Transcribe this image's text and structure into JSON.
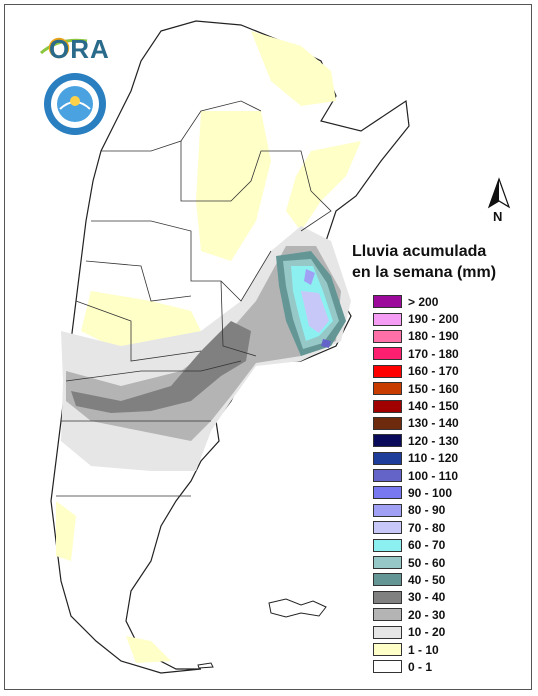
{
  "legend": {
    "title_line1": "Lluvia acumulada",
    "title_line2": "en la semana (mm)",
    "items": [
      {
        "label": "> 200",
        "color": "#9c0a9c"
      },
      {
        "label": "190 - 200",
        "color": "#f59cf5"
      },
      {
        "label": "180 - 190",
        "color": "#ff6fa8"
      },
      {
        "label": "170 - 180",
        "color": "#ff1f70"
      },
      {
        "label": "160 - 170",
        "color": "#ff0000"
      },
      {
        "label": "150 - 160",
        "color": "#c83c00"
      },
      {
        "label": "140 - 150",
        "color": "#a00000"
      },
      {
        "label": "130 - 140",
        "color": "#6e2a0c"
      },
      {
        "label": "120 - 130",
        "color": "#0a0a5a"
      },
      {
        "label": "110 - 120",
        "color": "#1e3c9a"
      },
      {
        "label": "100 - 110",
        "color": "#6464c8"
      },
      {
        "label": "90 - 100",
        "color": "#7878f0"
      },
      {
        "label": "80 - 90",
        "color": "#a0a0f5"
      },
      {
        "label": "70 - 80",
        "color": "#c8c8f8"
      },
      {
        "label": "60 - 70",
        "color": "#8cf0f0"
      },
      {
        "label": "50 - 60",
        "color": "#96c8c8"
      },
      {
        "label": "40 - 50",
        "color": "#649696"
      },
      {
        "label": "30 - 40",
        "color": "#808080"
      },
      {
        "label": "20 - 30",
        "color": "#b4b4b4"
      },
      {
        "label": "10 - 20",
        "color": "#e6e6e6"
      },
      {
        "label": "1 - 10",
        "color": "#ffffc8"
      },
      {
        "label": "0 - 1",
        "color": "#ffffff"
      }
    ]
  },
  "north_arrow": {
    "label": "N"
  },
  "logos": {
    "ora": "ORA"
  }
}
